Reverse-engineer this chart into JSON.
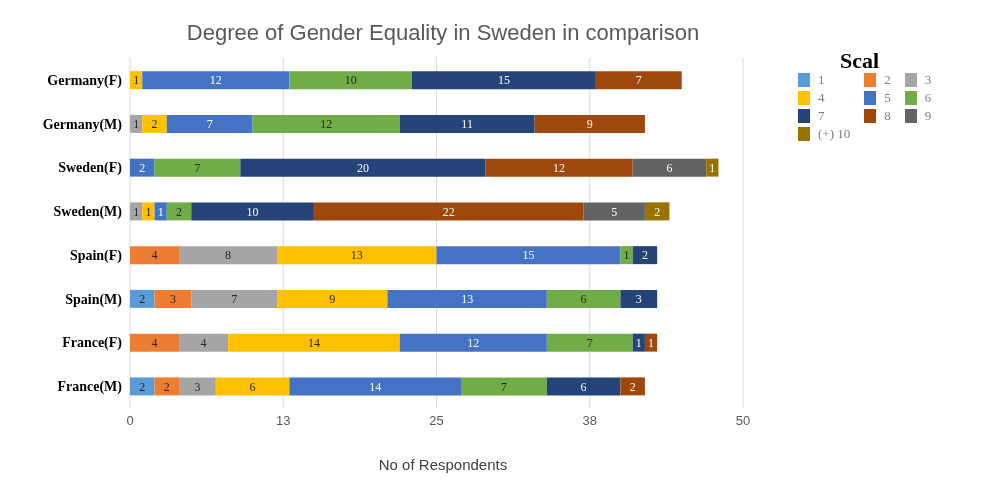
{
  "chart_data": {
    "type": "bar",
    "orientation": "horizontal",
    "stacked": true,
    "title": "Degree of Gender Equality in Sweden in comparison",
    "xlabel": "No of Respondents",
    "legend_title": "Scal",
    "legend": "top right",
    "grid": "x",
    "data_labels": true,
    "categories": [
      "Germany(F)",
      "Germany(M)",
      "Sweden(F)",
      "Sweden(M)",
      "Spain(F)",
      "Spain(M)",
      "France(F)",
      "France(M)"
    ],
    "xlim": [
      0,
      50
    ],
    "xticks": [
      0,
      {
        "value": 12.5,
        "label": "13"
      },
      25,
      {
        "value": 37.5,
        "label": "38"
      },
      50
    ],
    "series": [
      {
        "name": "1",
        "color": "#5b9bd5",
        "values": [
          null,
          null,
          null,
          null,
          null,
          2,
          null,
          2
        ]
      },
      {
        "name": "2",
        "color": "#ed7d31",
        "values": [
          null,
          null,
          null,
          null,
          4,
          3,
          4,
          2
        ]
      },
      {
        "name": "3",
        "color": "#a5a5a5",
        "values": [
          null,
          1,
          null,
          1,
          8,
          7,
          4,
          3
        ]
      },
      {
        "name": "4",
        "color": "#ffc000",
        "values": [
          1,
          2,
          null,
          1,
          13,
          9,
          14,
          6
        ]
      },
      {
        "name": "5",
        "color": "#4472c4",
        "values": [
          12,
          7,
          2,
          1,
          15,
          13,
          12,
          14
        ]
      },
      {
        "name": "6",
        "color": "#70ad47",
        "values": [
          10,
          12,
          7,
          2,
          1,
          6,
          7,
          7
        ]
      },
      {
        "name": "7",
        "color": "#264478",
        "values": [
          15,
          11,
          20,
          10,
          2,
          3,
          1,
          6
        ]
      },
      {
        "name": "8",
        "color": "#9e480e",
        "values": [
          7,
          9,
          12,
          22,
          null,
          null,
          1,
          2
        ]
      },
      {
        "name": "9",
        "color": "#636363",
        "values": [
          null,
          null,
          6,
          5,
          null,
          null,
          null,
          null
        ]
      },
      {
        "name": "(+) 10",
        "color": "#997300",
        "values": [
          null,
          null,
          1,
          2,
          null,
          null,
          null,
          null
        ]
      }
    ]
  }
}
